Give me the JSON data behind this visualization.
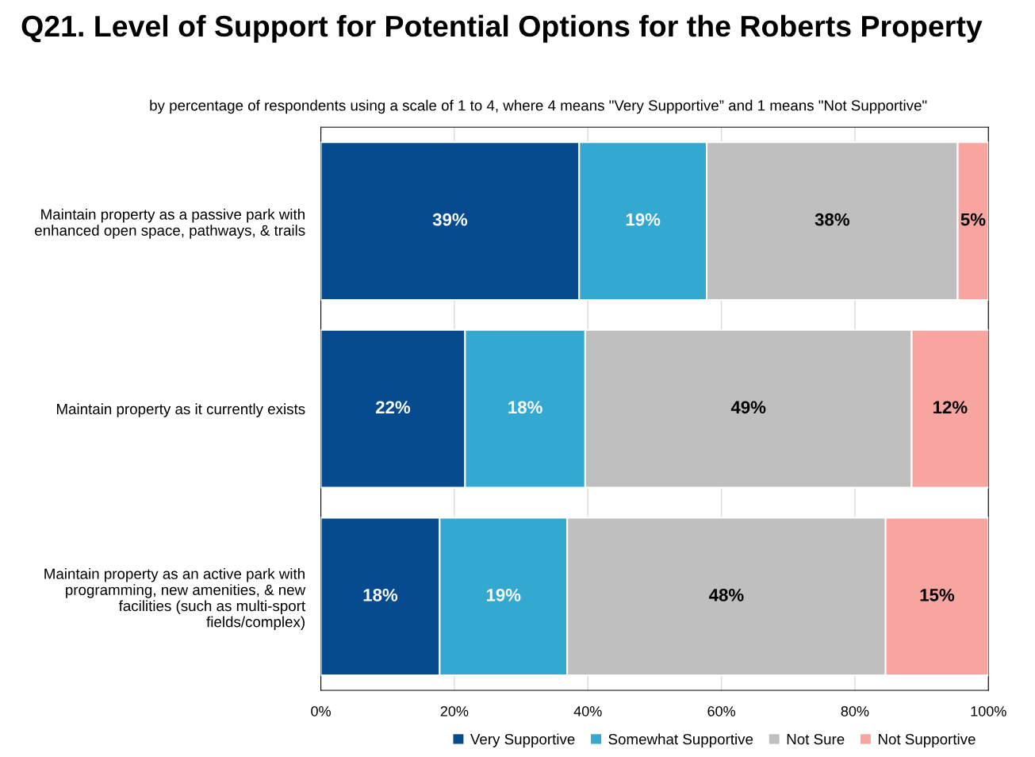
{
  "chart_data": {
    "type": "bar",
    "orientation": "horizontal",
    "stacked": true,
    "title": "Q21. Level of Support for Potential Options for the Roberts Property",
    "subtitle": "by percentage of respondents using a scale of 1 to 4, where 4 means \"Very Supportive” and 1 means \"Not Supportive\"",
    "categories": [
      "Maintain property as a passive park with\nenhanced open space, pathways, & trails",
      "Maintain property as it currently exists",
      "Maintain property as an active park with\nprogramming, new amenities, & new\nfacilities (such as multi-sport\nfields/complex)"
    ],
    "series": [
      {
        "name": "Very Supportive",
        "color": "#064a8f",
        "values": [
          38.7,
          21.6,
          17.8
        ],
        "value_labels": [
          "39%",
          "22%",
          "18%"
        ]
      },
      {
        "name": "Somewhat Supportive",
        "color": "#33a8d1",
        "values": [
          19.1,
          18.0,
          19.1
        ],
        "value_labels": [
          "19%",
          "18%",
          "19%"
        ]
      },
      {
        "name": "Not Sure",
        "color": "#bfbfbf",
        "values": [
          37.6,
          48.9,
          47.7
        ],
        "value_labels": [
          "38%",
          "49%",
          "48%"
        ]
      },
      {
        "name": "Not Supportive",
        "color": "#f8a5a0",
        "values": [
          4.6,
          11.7,
          15.4
        ],
        "value_labels": [
          "5%",
          "12%",
          "15%"
        ]
      }
    ],
    "xlim": [
      0,
      100
    ],
    "xticks": [
      {
        "value": 0,
        "label": "0%"
      },
      {
        "value": 20,
        "label": "20%"
      },
      {
        "value": 40,
        "label": "40%"
      },
      {
        "value": 60,
        "label": "60%"
      },
      {
        "value": 80,
        "label": "80%"
      },
      {
        "value": 100,
        "label": "100%"
      }
    ],
    "grid": "x",
    "legend": "bottom"
  }
}
